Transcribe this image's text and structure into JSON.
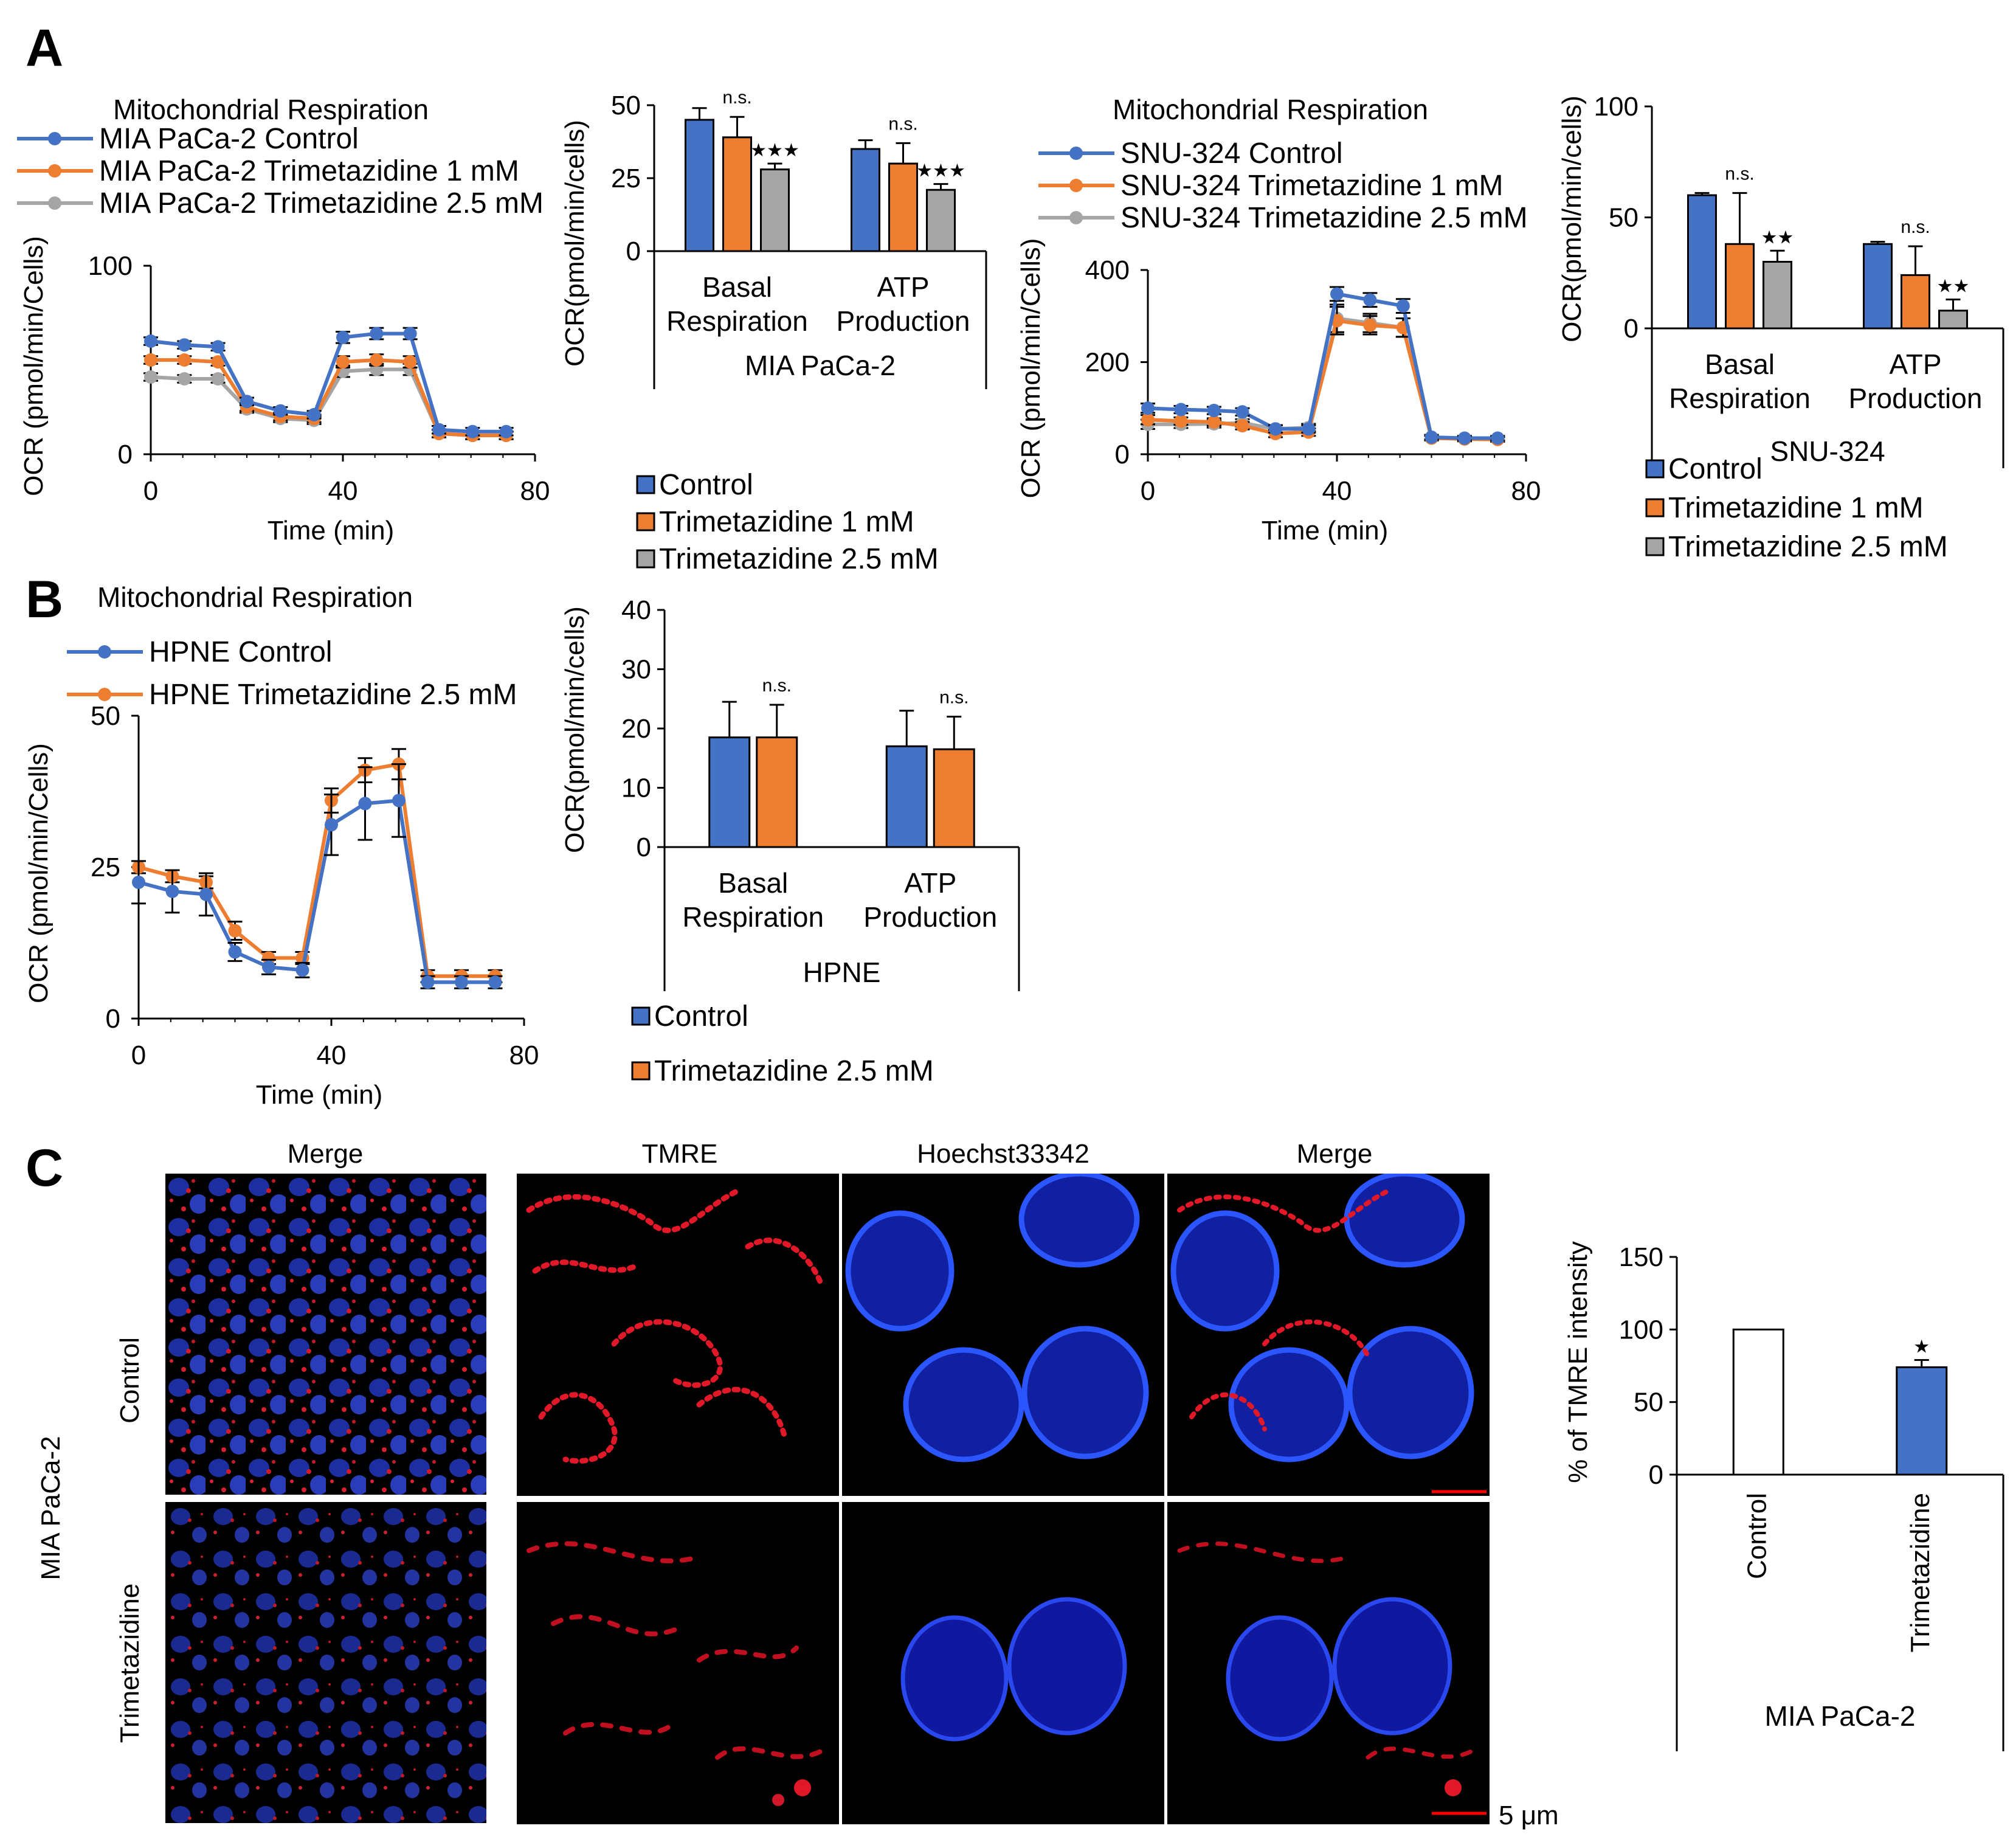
{
  "colors": {
    "blue": "#4472c4",
    "orange": "#ed7d31",
    "gray": "#a5a5a5",
    "black": "#000000",
    "red": "#ff0000"
  },
  "panels": {
    "a": "A",
    "b": "B",
    "c": "C"
  },
  "chart_data": [
    {
      "id": "a-line-mia",
      "type": "line",
      "title": "Mitochondrial Respiration",
      "xlabel": "Time  (min)",
      "ylabel": "OCR  (pmol/min/Cells)",
      "xlim": [
        0,
        80
      ],
      "ylim": [
        0,
        100
      ],
      "xticks": [
        "0",
        "40",
        "80"
      ],
      "yticks": [
        "0",
        "100"
      ],
      "x": [
        0,
        7,
        14,
        20,
        27,
        34,
        40,
        47,
        54,
        60,
        67,
        74
      ],
      "series": [
        {
          "name": "MIA PaCa-2 Control",
          "color": "blue",
          "values": [
            60,
            58,
            57,
            28,
            23,
            21,
            62,
            64,
            64,
            13,
            12,
            12
          ],
          "err": [
            2,
            2,
            2,
            2,
            2,
            2,
            3,
            3,
            3,
            2,
            2,
            2
          ]
        },
        {
          "name": "MIA PaCa-2 Trimetazidine 1 mM",
          "color": "orange",
          "values": [
            50,
            50,
            49,
            25,
            20,
            19,
            49,
            50,
            49,
            11,
            10,
            10
          ],
          "err": [
            2,
            2,
            2,
            2,
            2,
            2,
            3,
            3,
            3,
            2,
            2,
            2
          ]
        },
        {
          "name": "MIA PaCa-2 Trimetazidine 2.5 mM",
          "color": "gray",
          "values": [
            41,
            40,
            40,
            24,
            19,
            18,
            44,
            45,
            45,
            11,
            10,
            10
          ],
          "err": [
            2,
            2,
            2,
            2,
            2,
            2,
            3,
            3,
            3,
            2,
            2,
            2
          ]
        }
      ]
    },
    {
      "id": "a-bar-mia",
      "type": "bar",
      "ylabel": "OCR(pmol/min/cells)",
      "ylim": [
        0,
        50
      ],
      "yticks": [
        "0",
        "25",
        "50"
      ],
      "categories": [
        "Basal\nRespiration",
        "ATP\nProduction"
      ],
      "group_label": "MIA PaCa-2",
      "series": [
        {
          "name": "Control",
          "color": "blue",
          "values": [
            45,
            35
          ],
          "err": [
            4,
            3
          ]
        },
        {
          "name": "Trimetazidine 1 mM",
          "color": "orange",
          "values": [
            39,
            30
          ],
          "err": [
            7,
            7
          ]
        },
        {
          "name": "Trimetazidine 2.5 mM",
          "color": "gray",
          "values": [
            28,
            21
          ],
          "err": [
            2,
            2
          ]
        }
      ],
      "annotations": [
        {
          "category": 0,
          "series": 1,
          "text": "n.s."
        },
        {
          "category": 0,
          "series": 2,
          "text": "★★★"
        },
        {
          "category": 1,
          "series": 1,
          "text": "n.s."
        },
        {
          "category": 1,
          "series": 2,
          "text": "★★★"
        }
      ]
    },
    {
      "id": "a-line-snu",
      "type": "line",
      "title": "Mitochondrial Respiration",
      "xlabel": "Time  (min)",
      "ylabel": "OCR  (pmol/min/Cells)",
      "xlim": [
        0,
        80
      ],
      "ylim": [
        0,
        400
      ],
      "xticks": [
        "0",
        "40",
        "80"
      ],
      "yticks": [
        "0",
        "200",
        "400"
      ],
      "x": [
        0,
        7,
        14,
        20,
        27,
        34,
        40,
        47,
        54,
        60,
        67,
        74
      ],
      "series": [
        {
          "name": "SNU-324 Control",
          "color": "blue",
          "values": [
            100,
            97,
            95,
            92,
            55,
            55,
            348,
            335,
            322,
            37,
            35,
            35
          ],
          "err": [
            10,
            8,
            8,
            8,
            8,
            8,
            15,
            15,
            15,
            5,
            5,
            5
          ]
        },
        {
          "name": "SNU-324 Trimetazidine 1 mM",
          "color": "orange",
          "values": [
            75,
            72,
            70,
            62,
            45,
            48,
            290,
            280,
            275,
            35,
            33,
            32
          ],
          "err": [
            10,
            8,
            8,
            8,
            8,
            8,
            30,
            20,
            20,
            5,
            5,
            5
          ]
        },
        {
          "name": "SNU-324 Trimetazidine 2.5 mM",
          "color": "gray",
          "values": [
            65,
            65,
            66,
            68,
            55,
            58,
            295,
            285,
            275,
            35,
            34,
            33
          ],
          "err": [
            10,
            8,
            8,
            8,
            8,
            8,
            30,
            20,
            20,
            5,
            5,
            5
          ]
        }
      ]
    },
    {
      "id": "a-bar-snu",
      "type": "bar",
      "ylabel": "OCR(pmol/min/cells)",
      "ylim": [
        0,
        100
      ],
      "yticks": [
        "0",
        "50",
        "100"
      ],
      "categories": [
        "Basal\nRespiration",
        "ATP\nProduction"
      ],
      "group_label": "SNU-324",
      "series": [
        {
          "name": "Control",
          "color": "blue",
          "values": [
            60,
            38
          ],
          "err": [
            1,
            1
          ]
        },
        {
          "name": "Trimetazidine 1 mM",
          "color": "orange",
          "values": [
            38,
            24
          ],
          "err": [
            23,
            13
          ]
        },
        {
          "name": "Trimetazidine 2.5 mM",
          "color": "gray",
          "values": [
            30,
            8
          ],
          "err": [
            5,
            5
          ]
        }
      ],
      "annotations": [
        {
          "category": 0,
          "series": 1,
          "text": "n.s."
        },
        {
          "category": 0,
          "series": 2,
          "text": "★★"
        },
        {
          "category": 1,
          "series": 1,
          "text": "n.s."
        },
        {
          "category": 1,
          "series": 2,
          "text": "★★"
        }
      ]
    },
    {
      "id": "b-line-hpne",
      "type": "line",
      "title": "Mitochondrial Respiration",
      "xlabel": "Time  (min)",
      "ylabel": "OCR  (pmol/min/Cells)",
      "xlim": [
        0,
        80
      ],
      "ylim": [
        0,
        50
      ],
      "xticks": [
        "0",
        "40",
        "80"
      ],
      "yticks": [
        "0",
        "25",
        "50"
      ],
      "x": [
        0,
        7,
        14,
        20,
        27,
        34,
        40,
        47,
        54,
        60,
        67,
        74
      ],
      "series": [
        {
          "name": "HPNE Control",
          "color": "blue",
          "values": [
            22.5,
            21,
            20.5,
            11,
            8.5,
            8,
            32,
            35.5,
            36,
            6,
            6,
            6
          ],
          "err": [
            3.5,
            3.5,
            3.5,
            1.5,
            1.2,
            1.2,
            5,
            6,
            6,
            1,
            1,
            1
          ]
        },
        {
          "name": "HPNE Trimetazidine 2.5 mM",
          "color": "orange",
          "values": [
            25,
            23.5,
            22.5,
            14.5,
            10,
            10,
            36,
            41,
            42,
            7,
            7,
            7
          ],
          "err": [
            1,
            1,
            1,
            1.5,
            1,
            1,
            2,
            2,
            2.5,
            1,
            1,
            1
          ]
        }
      ]
    },
    {
      "id": "b-bar-hpne",
      "type": "bar",
      "ylabel": "OCR(pmol/min/cells)",
      "ylim": [
        0,
        40
      ],
      "yticks": [
        "0",
        "10",
        "20",
        "30",
        "40"
      ],
      "categories": [
        "Basal\nRespiration",
        "ATP\nProduction"
      ],
      "group_label": "HPNE",
      "series": [
        {
          "name": "Control",
          "color": "blue",
          "values": [
            18.5,
            17
          ],
          "err": [
            6,
            6
          ]
        },
        {
          "name": "Trimetazidine 2.5 mM",
          "color": "orange",
          "values": [
            18.5,
            16.5
          ],
          "err": [
            5.5,
            5.5
          ]
        }
      ],
      "annotations": [
        {
          "category": 0,
          "series": 1,
          "text": "n.s."
        },
        {
          "category": 1,
          "series": 1,
          "text": "n.s."
        }
      ]
    },
    {
      "id": "c-bar-tmre",
      "type": "bar",
      "ylabel": "% of TMRE  intensity",
      "ylim": [
        0,
        150
      ],
      "yticks": [
        "0",
        "50",
        "100",
        "150"
      ],
      "categories": [
        "Control",
        "Trimetazidine"
      ],
      "group_label": "MIA PaCa-2",
      "series": [
        {
          "name": "TMRE",
          "values": [
            100,
            74
          ],
          "err": [
            0,
            5
          ],
          "colors": [
            "white",
            "blue"
          ]
        }
      ],
      "annotations": [
        {
          "category": 1,
          "series": 0,
          "text": "★"
        }
      ]
    }
  ],
  "microscopy": {
    "col_labels": [
      "Merge",
      "TMRE",
      "Hoechst33342",
      "Merge"
    ],
    "row_labels": [
      "Control",
      "Trimetazidine"
    ],
    "cell_line": "MIA PaCa-2",
    "scale_bar": "5  μm"
  }
}
